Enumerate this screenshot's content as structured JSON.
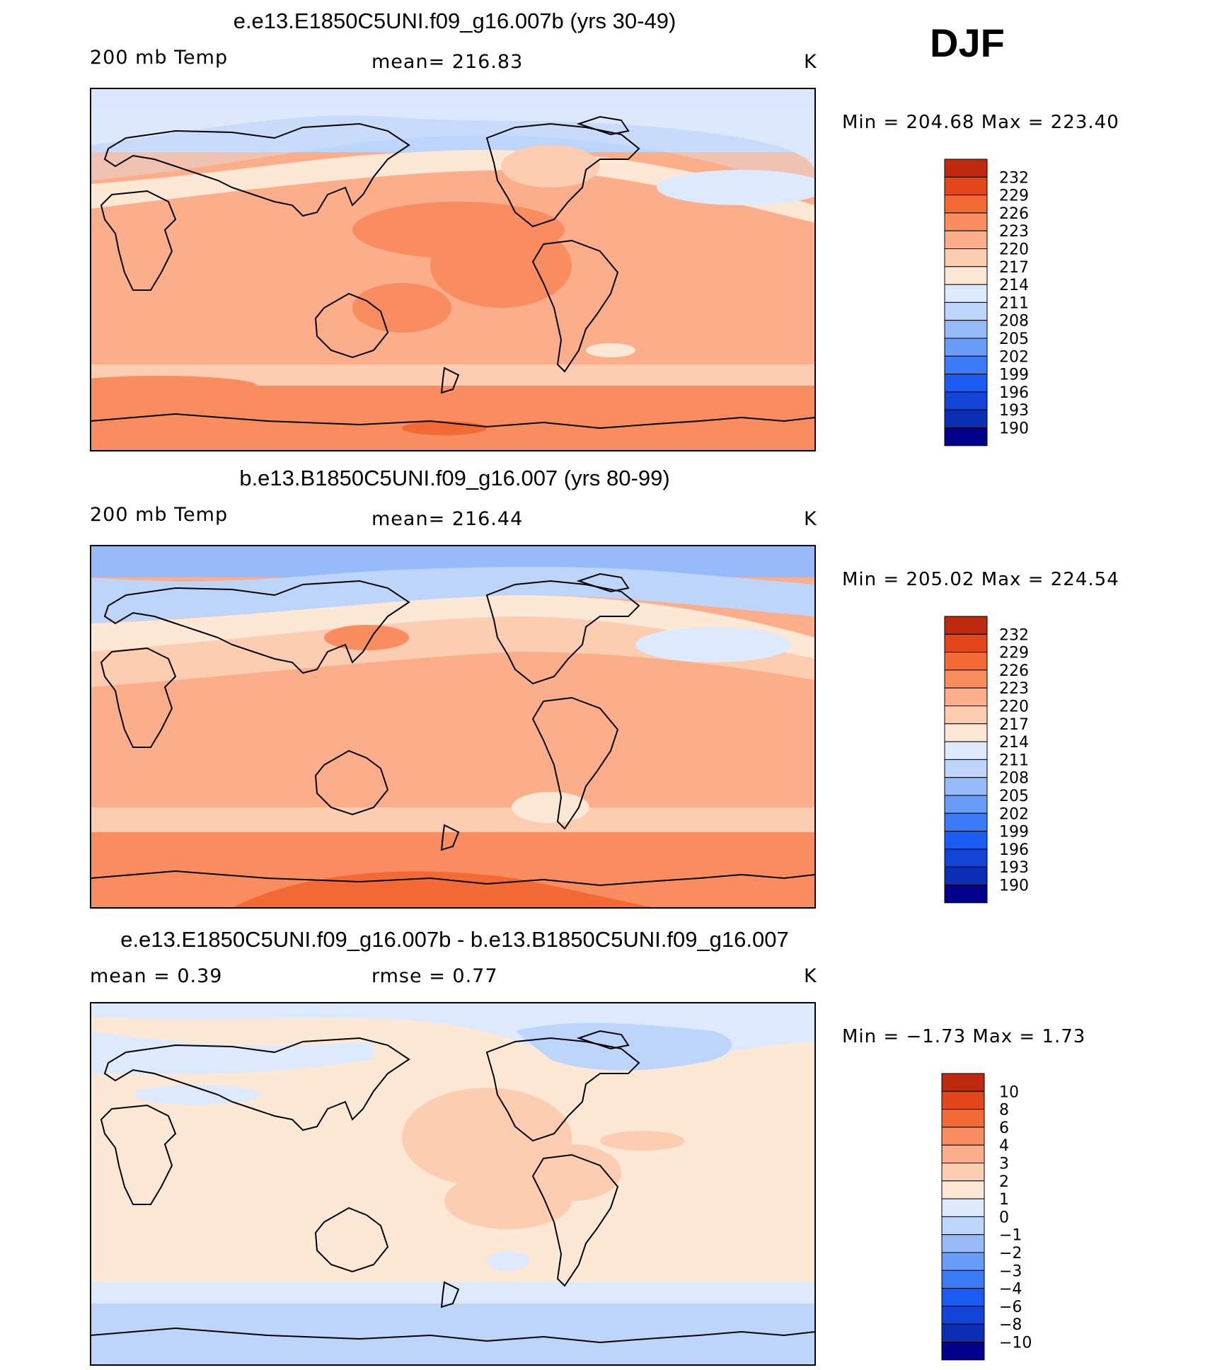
{
  "season": "DJF",
  "colors": {
    "scale": [
      "#00008b",
      "#0a2fb4",
      "#1244d8",
      "#1a5cf2",
      "#3b7bf7",
      "#6a9cfa",
      "#97baf9",
      "#bdd5fb",
      "#dde9fc",
      "#fde8d6",
      "#fccdb1",
      "#fbae89",
      "#f98d60",
      "#f46a37",
      "#e4461b",
      "#bf2a0e",
      "#8b0c04"
    ]
  },
  "panels": [
    {
      "title": "e.e13.E1850C5UNI.f09_g16.007b (yrs 30-49)",
      "left_label": "200 mb Temp",
      "center_label": "mean=  216.83",
      "units": "K",
      "minmax": "Min  =  204.68  Max  =  223.40",
      "legend_labels": [
        "232",
        "229",
        "226",
        "223",
        "220",
        "217",
        "214",
        "211",
        "208",
        "205",
        "202",
        "199",
        "196",
        "193",
        "190"
      ]
    },
    {
      "title": "b.e13.B1850C5UNI.f09_g16.007 (yrs 80-99)",
      "left_label": "200 mb Temp",
      "center_label": "mean=  216.44",
      "units": "K",
      "minmax": "Min  =  205.02  Max  =  224.54",
      "legend_labels": [
        "232",
        "229",
        "226",
        "223",
        "220",
        "217",
        "214",
        "211",
        "208",
        "205",
        "202",
        "199",
        "196",
        "193",
        "190"
      ]
    },
    {
      "title": "e.e13.E1850C5UNI.f09_g16.007b - b.e13.B1850C5UNI.f09_g16.007",
      "left_label": "mean  =      0.39",
      "center_label": "rmse  =      0.77",
      "units": "K",
      "minmax": "Min  =    −1.73  Max  =      1.73",
      "legend_labels": [
        "10",
        "8",
        "6",
        "4",
        "3",
        "2",
        "1",
        "0",
        "−1",
        "−2",
        "−3",
        "−4",
        "−6",
        "−8",
        "−10"
      ]
    }
  ],
  "chart_data": [
    {
      "type": "heatmap",
      "title": "e.e13.E1850C5UNI.f09_g16.007b (yrs 30-49)",
      "variable": "200 mb Temp",
      "units": "K",
      "mean": 216.83,
      "min": 204.68,
      "max": 223.4,
      "contour_levels": [
        190,
        193,
        196,
        199,
        202,
        205,
        208,
        211,
        214,
        217,
        220,
        223,
        226,
        229,
        232
      ]
    },
    {
      "type": "heatmap",
      "title": "b.e13.B1850C5UNI.f09_g16.007 (yrs 80-99)",
      "variable": "200 mb Temp",
      "units": "K",
      "mean": 216.44,
      "min": 205.02,
      "max": 224.54,
      "contour_levels": [
        190,
        193,
        196,
        199,
        202,
        205,
        208,
        211,
        214,
        217,
        220,
        223,
        226,
        229,
        232
      ]
    },
    {
      "type": "heatmap",
      "title": "e.e13.E1850C5UNI.f09_g16.007b - b.e13.B1850C5UNI.f09_g16.007",
      "units": "K",
      "mean": 0.39,
      "rmse": 0.77,
      "min": -1.73,
      "max": 1.73,
      "contour_levels": [
        -10,
        -8,
        -6,
        -4,
        -3,
        -2,
        -1,
        0,
        1,
        2,
        3,
        4,
        6,
        8,
        10
      ]
    }
  ]
}
